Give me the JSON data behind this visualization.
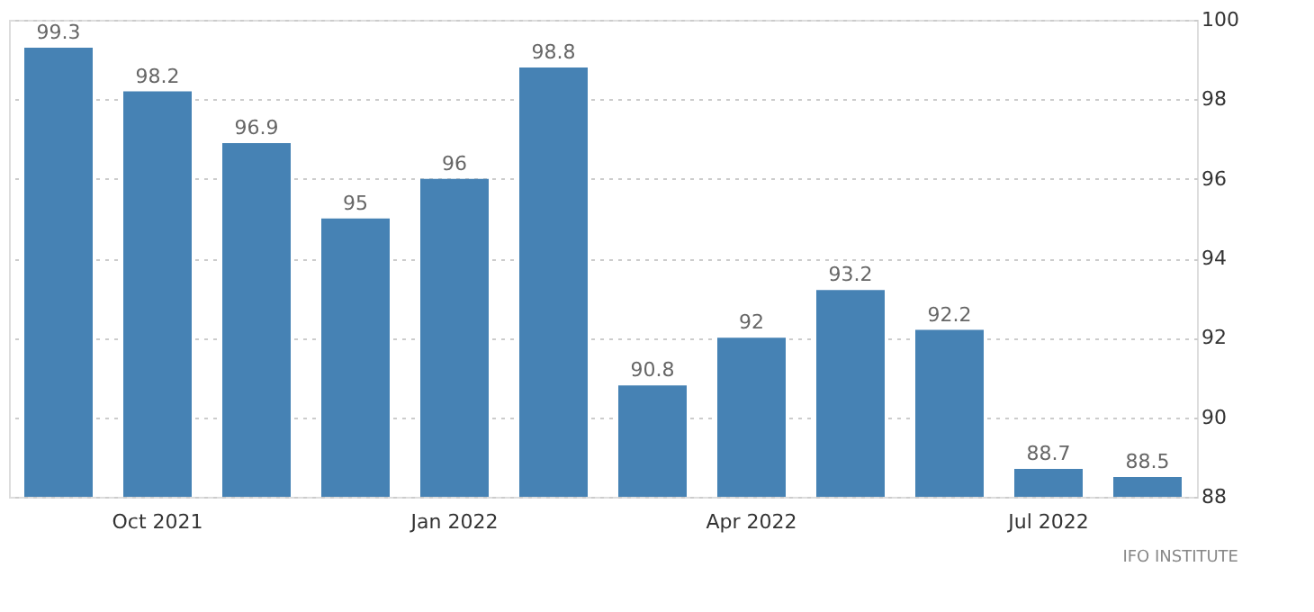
{
  "chart_data": {
    "type": "bar",
    "categories": [
      null,
      "Oct 2021",
      null,
      null,
      "Jan 2022",
      null,
      null,
      "Apr 2022",
      null,
      null,
      "Jul 2022",
      null
    ],
    "values": [
      99.3,
      98.2,
      96.9,
      95,
      96,
      98.8,
      90.8,
      92,
      93.2,
      92.2,
      88.7,
      88.5
    ],
    "color": "#4682b4",
    "ylim": [
      88,
      100
    ],
    "yticks": [
      88,
      90,
      92,
      94,
      96,
      98,
      100
    ],
    "grid": "y",
    "data_labels": true,
    "annotations": [
      "IFO INSTITUTE"
    ]
  }
}
